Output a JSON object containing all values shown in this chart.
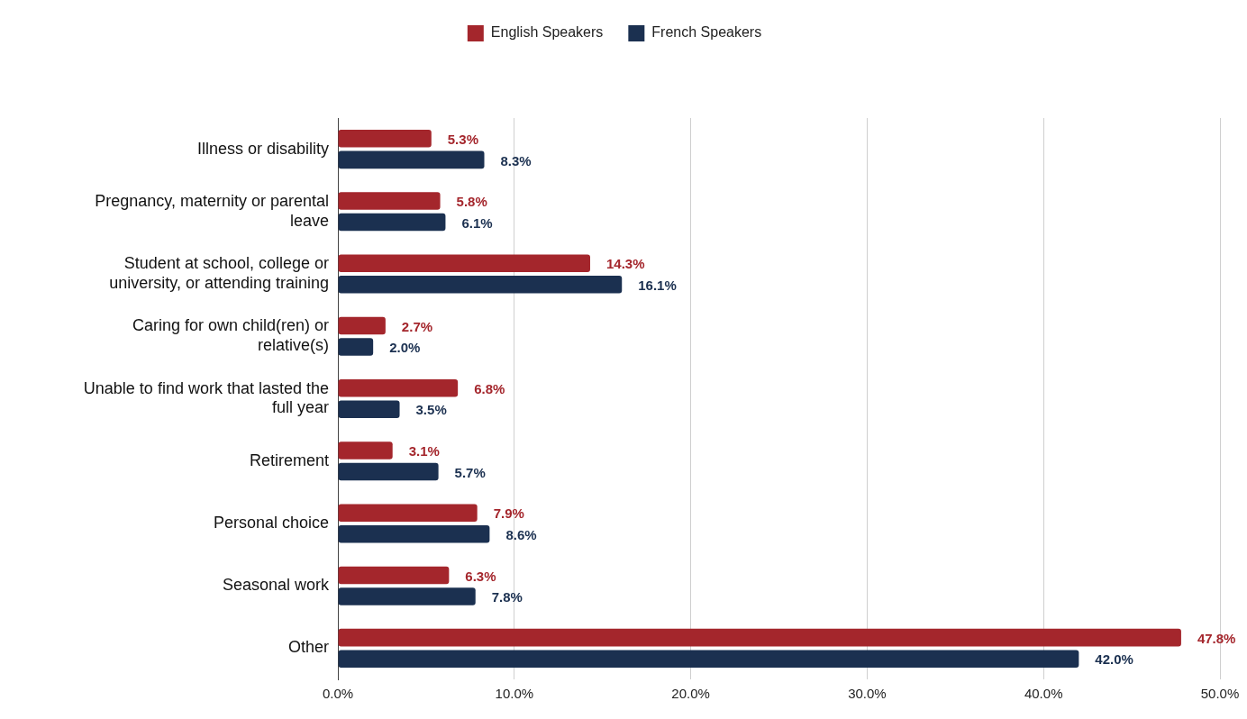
{
  "chart_data": {
    "type": "bar",
    "orientation": "horizontal",
    "legend": "top",
    "grid": "x",
    "categories": [
      "Illness or disability",
      "Pregnancy, maternity or parental leave",
      "Student at school, college or university, or attending training",
      "Caring for own child(ren) or relative(s)",
      "Unable to find work that lasted the full year",
      "Retirement",
      "Personal choice",
      "Seasonal work",
      "Other"
    ],
    "series": [
      {
        "name": "English Speakers",
        "color": "#a4262c",
        "values": [
          5.3,
          5.8,
          14.3,
          2.7,
          6.8,
          3.1,
          7.9,
          6.3,
          47.8
        ],
        "value_labels": [
          "5.3%",
          "5.8%",
          "14.3%",
          "2.7%",
          "6.8%",
          "3.1%",
          "7.9%",
          "6.3%",
          "47.8%"
        ]
      },
      {
        "name": "French Speakers",
        "color": "#1b3050",
        "values": [
          8.3,
          6.1,
          16.1,
          2.0,
          3.5,
          5.7,
          8.6,
          7.8,
          42.0
        ],
        "value_labels": [
          "8.3%",
          "6.1%",
          "16.1%",
          "2.0%",
          "3.5%",
          "5.7%",
          "8.6%",
          "7.8%",
          "42.0%"
        ]
      }
    ],
    "xlim": [
      0,
      50
    ],
    "xticks": [
      {
        "value": 0,
        "label": "0.0%"
      },
      {
        "value": 10,
        "label": "10.0%"
      },
      {
        "value": 20,
        "label": "20.0%"
      },
      {
        "value": 30,
        "label": "30.0%"
      },
      {
        "value": 40,
        "label": "40.0%"
      },
      {
        "value": 50,
        "label": "50.0%"
      }
    ]
  }
}
